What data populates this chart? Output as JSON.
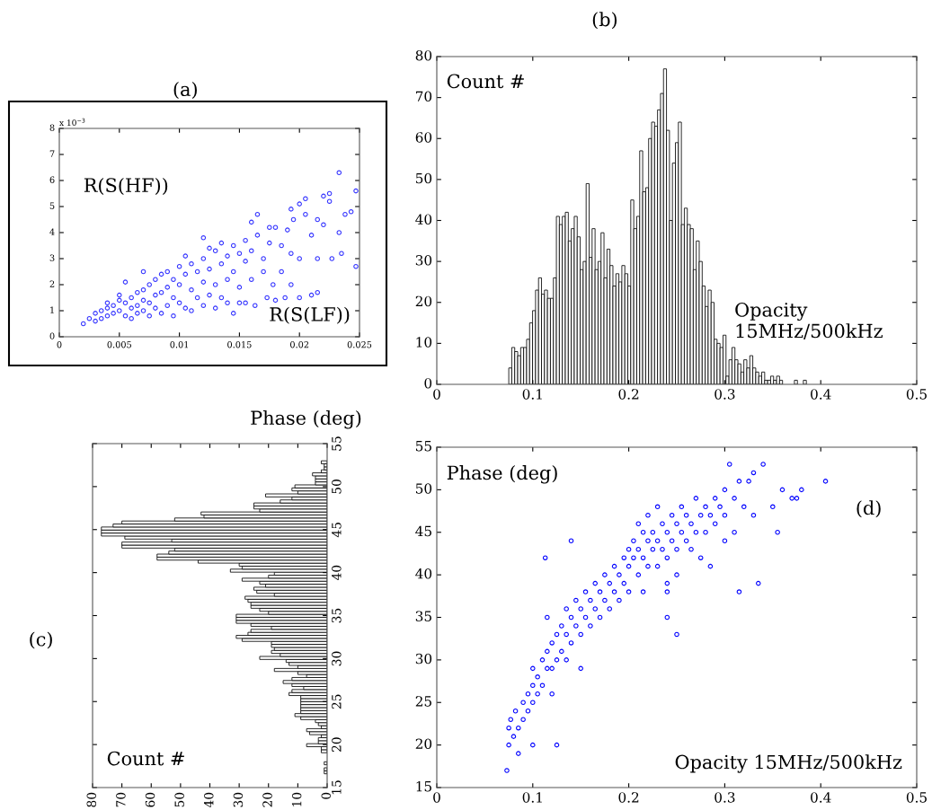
{
  "chart_data": [
    {
      "type": "scatter",
      "title": "(a)",
      "xlabel": "R(S(LF))",
      "ylabel": "R(S(HF))",
      "annotations": [
        "x 10$^{−3}$"
      ],
      "color": "#3333ff",
      "marker": "circle",
      "xlim": [
        0,
        0.025
      ],
      "xticks": [
        0,
        0.005,
        0.01,
        0.015,
        0.02,
        0.025
      ],
      "ylim": [
        0,
        8
      ],
      "yticks": [
        0,
        1,
        2,
        3,
        4,
        5,
        6,
        7,
        8
      ],
      "x": [
        0.002,
        0.0025,
        0.003,
        0.003,
        0.0035,
        0.0035,
        0.004,
        0.004,
        0.004,
        0.0045,
        0.0045,
        0.005,
        0.005,
        0.005,
        0.0055,
        0.0055,
        0.0055,
        0.006,
        0.006,
        0.006,
        0.0065,
        0.0065,
        0.0065,
        0.007,
        0.007,
        0.007,
        0.007,
        0.0075,
        0.0075,
        0.0075,
        0.008,
        0.008,
        0.008,
        0.0085,
        0.0085,
        0.0085,
        0.009,
        0.009,
        0.009,
        0.0095,
        0.0095,
        0.0095,
        0.01,
        0.01,
        0.01,
        0.0105,
        0.0105,
        0.0105,
        0.011,
        0.011,
        0.011,
        0.0115,
        0.0115,
        0.012,
        0.012,
        0.012,
        0.012,
        0.0125,
        0.0125,
        0.0125,
        0.013,
        0.013,
        0.013,
        0.0135,
        0.0135,
        0.0135,
        0.014,
        0.014,
        0.014,
        0.0145,
        0.0145,
        0.0145,
        0.015,
        0.015,
        0.015,
        0.0155,
        0.0155,
        0.0155,
        0.016,
        0.016,
        0.016,
        0.0163,
        0.0165,
        0.0165,
        0.017,
        0.017,
        0.0173,
        0.0175,
        0.0175,
        0.0178,
        0.018,
        0.018,
        0.0185,
        0.0185,
        0.0188,
        0.019,
        0.0193,
        0.0193,
        0.0193,
        0.0195,
        0.02,
        0.02,
        0.02,
        0.0205,
        0.0205,
        0.021,
        0.021,
        0.0215,
        0.0215,
        0.0215,
        0.022,
        0.022,
        0.0225,
        0.0225,
        0.0227,
        0.0233,
        0.0233,
        0.0235,
        0.0238,
        0.0243,
        0.0247,
        0.0247
      ],
      "values": [
        0.5,
        0.7,
        0.6,
        0.9,
        1.0,
        0.7,
        1.1,
        0.8,
        1.3,
        1.2,
        0.9,
        1.4,
        1.0,
        1.6,
        1.3,
        0.8,
        2.1,
        1.5,
        1.1,
        0.7,
        1.7,
        1.2,
        0.9,
        1.8,
        1.4,
        1.0,
        2.5,
        2.0,
        1.3,
        0.8,
        2.2,
        1.6,
        1.1,
        2.4,
        1.7,
        0.9,
        2.5,
        1.9,
        1.2,
        2.2,
        1.5,
        0.8,
        2.7,
        2.0,
        1.3,
        3.1,
        2.4,
        1.1,
        2.8,
        1.8,
        1.0,
        2.5,
        1.5,
        3.8,
        3.0,
        2.1,
        1.2,
        3.4,
        2.6,
        1.6,
        3.3,
        2.0,
        1.1,
        3.6,
        2.8,
        1.5,
        3.1,
        2.2,
        1.3,
        3.5,
        2.5,
        0.9,
        3.2,
        1.9,
        1.3,
        3.7,
        2.9,
        1.3,
        4.4,
        3.3,
        2.2,
        1.2,
        4.7,
        3.9,
        3.0,
        2.5,
        1.5,
        4.2,
        3.6,
        2.0,
        4.2,
        1.4,
        3.5,
        2.5,
        1.5,
        4.1,
        4.9,
        3.2,
        2.0,
        4.5,
        5.1,
        3.0,
        1.5,
        5.3,
        4.7,
        3.9,
        1.6,
        4.5,
        3.0,
        1.7,
        5.4,
        4.3,
        5.5,
        5.2,
        3.0,
        6.3,
        4.0,
        3.2,
        4.7,
        4.8,
        5.6,
        2.7
      ]
    },
    {
      "type": "histogram",
      "title": "(b)",
      "xlabel": "Opacity\n15MHz/500kHz",
      "ylabel": "Count #",
      "color": "#ffffff",
      "xlim": [
        0,
        0.5
      ],
      "xticks": [
        0,
        0.1,
        0.2,
        0.3,
        0.4,
        0.5
      ],
      "ylim": [
        0,
        80
      ],
      "yticks": [
        0,
        10,
        20,
        30,
        40,
        50,
        60,
        70,
        80
      ],
      "bins": [
        0.075,
        0.0781,
        0.0812,
        0.0843,
        0.0874,
        0.0905,
        0.0936,
        0.0967,
        0.0998,
        0.1029,
        0.106,
        0.1091,
        0.1122,
        0.1153,
        0.1184,
        0.1215,
        0.1246,
        0.1277,
        0.1308,
        0.1339,
        0.137,
        0.1401,
        0.1432,
        0.1463,
        0.1494,
        0.1525,
        0.1556,
        0.1587,
        0.1618,
        0.1649,
        0.168,
        0.1711,
        0.1742,
        0.1773,
        0.1804,
        0.1835,
        0.1866,
        0.1897,
        0.1928,
        0.1959,
        0.199,
        0.2021,
        0.2052,
        0.2083,
        0.2114,
        0.2145,
        0.2176,
        0.2207,
        0.2238,
        0.2269,
        0.23,
        0.2331,
        0.2362,
        0.2393,
        0.2424,
        0.2455,
        0.2486,
        0.2517,
        0.2548,
        0.2579,
        0.261,
        0.2641,
        0.2672,
        0.2703,
        0.2734,
        0.2765,
        0.2796,
        0.2827,
        0.2858,
        0.2889,
        0.292,
        0.2951,
        0.2982,
        0.3013,
        0.3044,
        0.3075,
        0.3106,
        0.3137,
        0.3168,
        0.3199,
        0.323,
        0.3261,
        0.3292,
        0.3323,
        0.3354,
        0.3385,
        0.3416,
        0.3447,
        0.3478,
        0.3509,
        0.354,
        0.3571,
        0.3602,
        0.3633,
        0.3664,
        0.3695,
        0.3726,
        0.3757,
        0.3788,
        0.3819,
        0.385
      ],
      "values": [
        4,
        9,
        8,
        7,
        9,
        9,
        11,
        15,
        18,
        23,
        26,
        22,
        23,
        21,
        21,
        26,
        41,
        39,
        41,
        42,
        35,
        38,
        41,
        36,
        28,
        30,
        49,
        31,
        38,
        28,
        30,
        37,
        26,
        33,
        29,
        24,
        27,
        25,
        29,
        27,
        24,
        45,
        38,
        41,
        57,
        47,
        48,
        60,
        64,
        63,
        67,
        71,
        77,
        62,
        40,
        54,
        59,
        64,
        39,
        43,
        39,
        38,
        28,
        35,
        30,
        24,
        19,
        23,
        20,
        11,
        10,
        9,
        12,
        2,
        6,
        9,
        6,
        5,
        3,
        6,
        4,
        7,
        4,
        3,
        2,
        3,
        1,
        1,
        2,
        1,
        2,
        1,
        0,
        0,
        0,
        0,
        1,
        0,
        0,
        1
      ]
    },
    {
      "type": "histogram",
      "orientation": "horizontal",
      "title": "(c)",
      "xlabel": "Count #",
      "ylabel": "Phase (deg)",
      "color": "#ffffff",
      "xlim": [
        80,
        0
      ],
      "xticks": [
        80,
        70,
        60,
        50,
        40,
        30,
        20,
        10,
        0
      ],
      "ylim": [
        15,
        55
      ],
      "yticks": [
        15,
        20,
        25,
        30,
        35,
        40,
        45,
        50,
        55
      ],
      "bins": [
        16.6,
        16.95,
        17.3,
        17.65,
        18,
        18.35,
        18.7,
        19.05,
        19.4,
        19.75,
        20.1,
        20.45,
        20.8,
        21.15,
        21.5,
        21.85,
        22.2,
        22.55,
        22.9,
        23.25,
        23.6,
        23.95,
        24.3,
        24.65,
        25,
        25.35,
        25.7,
        26.05,
        26.4,
        26.75,
        27.1,
        27.45,
        27.8,
        28.15,
        28.5,
        28.85,
        29.2,
        29.55,
        29.9,
        30.25,
        30.6,
        30.95,
        31.3,
        31.65,
        32,
        32.35,
        32.7,
        33.05,
        33.4,
        33.75,
        34.1,
        34.45,
        34.8,
        35.15,
        35.5,
        35.85,
        36.2,
        36.55,
        36.9,
        37.25,
        37.6,
        37.95,
        38.3,
        38.65,
        39,
        39.35,
        39.7,
        40.05,
        40.4,
        40.75,
        41.1,
        41.45,
        41.8,
        42.15,
        42.5,
        42.85,
        43.2,
        43.55,
        43.9,
        44.25,
        44.6,
        44.95,
        45.3,
        45.65,
        46,
        46.35,
        46.7,
        47.05,
        47.4,
        47.75,
        48.1,
        48.45,
        48.8,
        49.15,
        49.5,
        49.85,
        50.2,
        50.55,
        50.9,
        51.25,
        51.6,
        51.95,
        52.3,
        52.65,
        53
      ],
      "values": [
        1,
        1,
        0,
        1,
        0,
        0,
        0,
        2,
        2,
        7,
        3,
        3,
        2,
        6,
        7,
        2,
        3,
        4,
        9,
        11,
        9,
        9,
        9,
        9,
        9,
        9,
        13,
        12,
        8,
        12,
        15,
        12,
        7,
        10,
        18,
        10,
        13,
        14,
        23,
        16,
        19,
        18,
        19,
        19,
        29,
        31,
        27,
        26,
        19,
        26,
        31,
        31,
        31,
        20,
        23,
        26,
        26,
        27,
        28,
        18,
        24,
        25,
        21,
        23,
        29,
        20,
        18,
        33,
        29,
        30,
        44,
        58,
        58,
        54,
        52,
        70,
        70,
        53,
        69,
        77,
        77,
        77,
        73,
        70,
        52,
        42,
        43,
        23,
        25,
        25,
        16,
        12,
        21,
        10,
        12,
        11,
        4,
        4,
        4,
        5,
        2,
        1,
        1,
        2
      ]
    },
    {
      "type": "scatter",
      "title": "(d)",
      "xlabel": "Opacity 15MHz/500kHz",
      "ylabel": "Phase (deg)",
      "color": "#0000ff",
      "marker": "circle",
      "xlim": [
        0,
        0.5
      ],
      "xticks": [
        0,
        0.1,
        0.2,
        0.3,
        0.4,
        0.5
      ],
      "ylim": [
        15,
        55
      ],
      "yticks": [
        15,
        20,
        25,
        30,
        35,
        40,
        45,
        50,
        55
      ],
      "x": [
        0.073,
        0.075,
        0.075,
        0.077,
        0.08,
        0.082,
        0.085,
        0.085,
        0.09,
        0.09,
        0.095,
        0.095,
        0.1,
        0.1,
        0.1,
        0.1,
        0.105,
        0.105,
        0.11,
        0.11,
        0.115,
        0.115,
        0.115,
        0.12,
        0.12,
        0.12,
        0.125,
        0.125,
        0.13,
        0.13,
        0.135,
        0.135,
        0.14,
        0.14,
        0.145,
        0.145,
        0.15,
        0.15,
        0.15,
        0.155,
        0.155,
        0.16,
        0.16,
        0.165,
        0.165,
        0.17,
        0.17,
        0.175,
        0.175,
        0.18,
        0.18,
        0.185,
        0.185,
        0.19,
        0.19,
        0.195,
        0.195,
        0.2,
        0.2,
        0.2,
        0.205,
        0.205,
        0.21,
        0.21,
        0.21,
        0.215,
        0.215,
        0.215,
        0.22,
        0.22,
        0.22,
        0.225,
        0.225,
        0.23,
        0.23,
        0.23,
        0.235,
        0.235,
        0.24,
        0.24,
        0.24,
        0.245,
        0.245,
        0.25,
        0.25,
        0.25,
        0.255,
        0.255,
        0.26,
        0.26,
        0.265,
        0.265,
        0.27,
        0.27,
        0.275,
        0.275,
        0.28,
        0.28,
        0.285,
        0.285,
        0.29,
        0.29,
        0.295,
        0.3,
        0.3,
        0.3,
        0.305,
        0.31,
        0.31,
        0.315,
        0.32,
        0.325,
        0.33,
        0.33,
        0.335,
        0.35,
        0.355,
        0.36,
        0.37,
        0.375,
        0.38,
        0.405,
        0.14,
        0.113,
        0.135,
        0.125,
        0.24,
        0.24,
        0.25,
        0.315,
        0.34
      ],
      "values": [
        17,
        20,
        22,
        23,
        21,
        24,
        19,
        22,
        25,
        23,
        26,
        24,
        27,
        25,
        29,
        20,
        28,
        26,
        30,
        27,
        31,
        29,
        35,
        32,
        29,
        26,
        33,
        30,
        34,
        31,
        33,
        36,
        35,
        32,
        37,
        34,
        36,
        33,
        29,
        38,
        35,
        37,
        34,
        39,
        36,
        38,
        35,
        40,
        37,
        39,
        36,
        41,
        38,
        40,
        37,
        42,
        39,
        43,
        41,
        38,
        44,
        42,
        46,
        43,
        40,
        45,
        42,
        38,
        47,
        44,
        41,
        45,
        43,
        48,
        44,
        41,
        46,
        43,
        45,
        42,
        39,
        47,
        44,
        46,
        43,
        40,
        48,
        45,
        47,
        44,
        46,
        43,
        49,
        45,
        47,
        42,
        48,
        45,
        47,
        41,
        49,
        46,
        48,
        50,
        47,
        44,
        53,
        49,
        45,
        51,
        48,
        51,
        52,
        47,
        39,
        48,
        45,
        50,
        49,
        49,
        50,
        51,
        44,
        42,
        30,
        20,
        38,
        35,
        33,
        38,
        53
      ]
    }
  ]
}
